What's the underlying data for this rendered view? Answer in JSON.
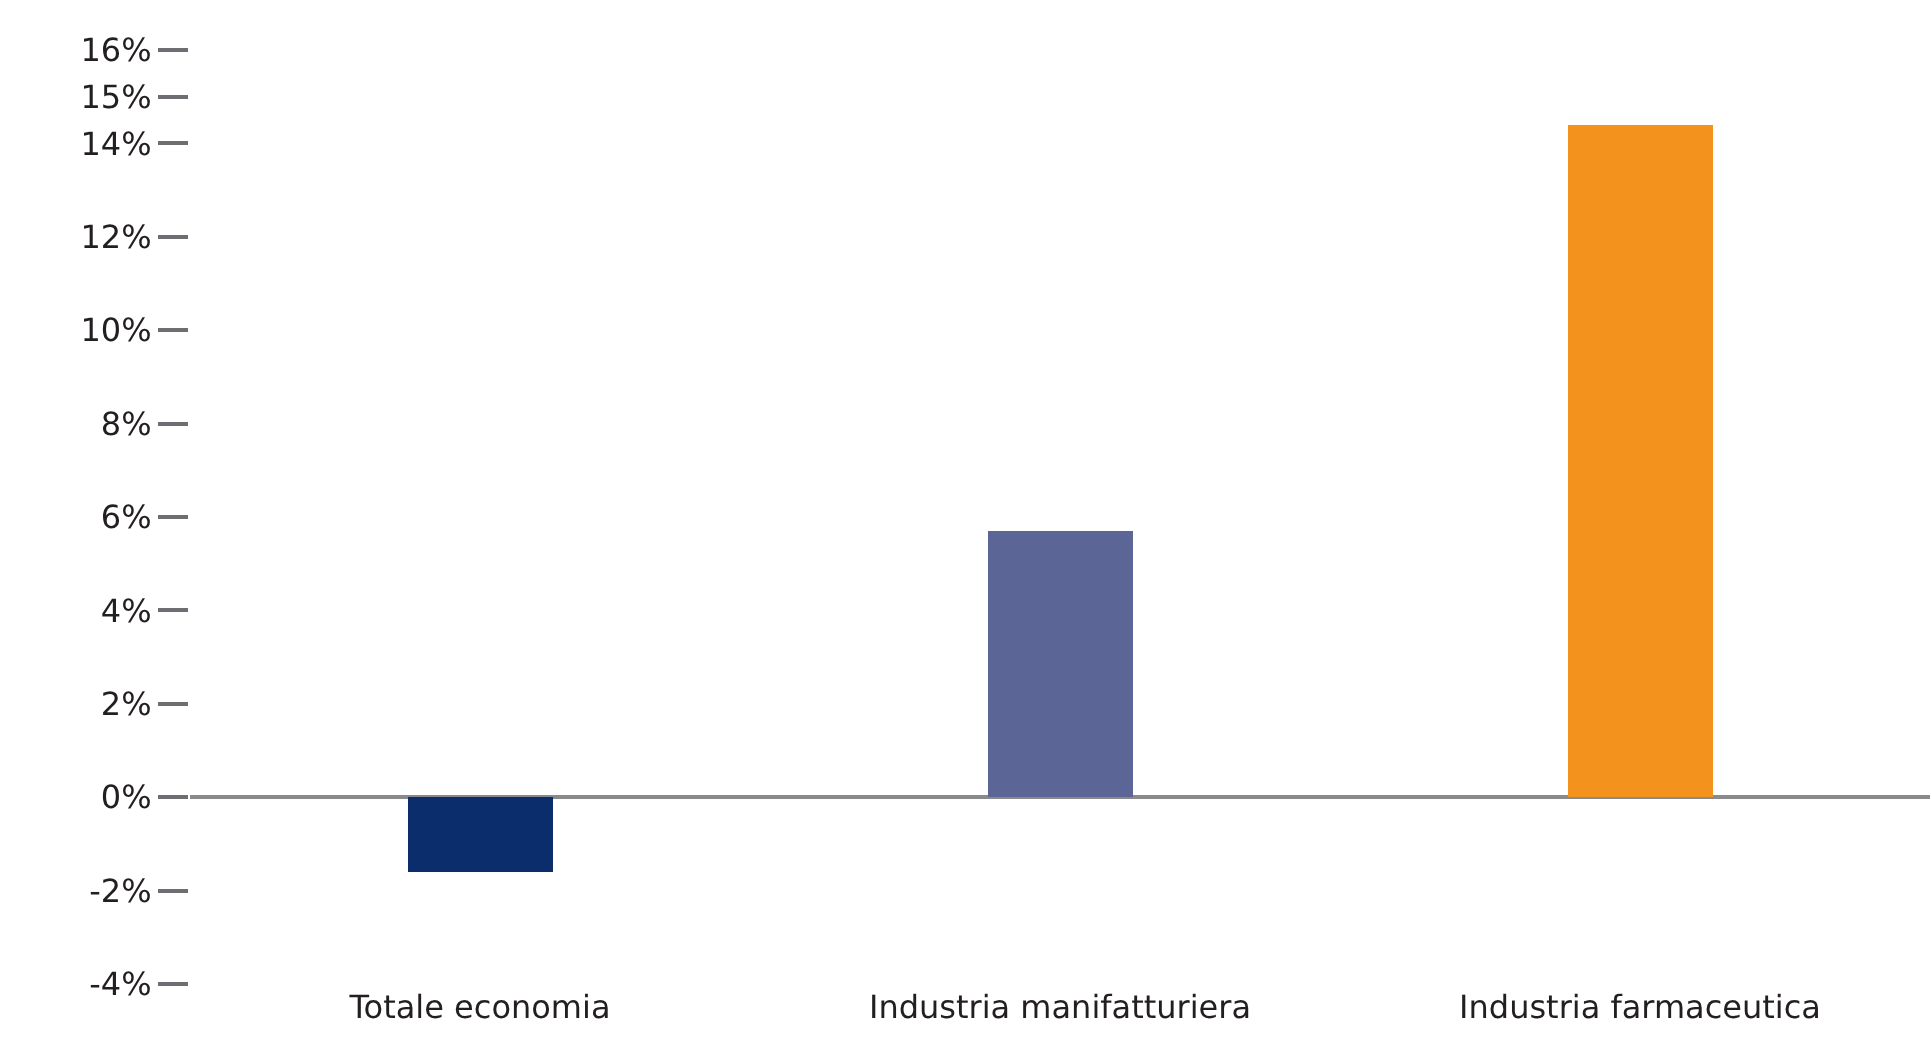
{
  "chart_data": {
    "type": "bar",
    "categories": [
      "Totale economia",
      "Industria manifatturiera",
      "Industria farmaceutica"
    ],
    "values": [
      -1.6,
      5.7,
      14.4
    ],
    "colors": [
      "#0b2d6b",
      "#5c6696",
      "#f4921e"
    ],
    "ylim": [
      -4,
      16
    ],
    "yticks": [
      {
        "value": 16,
        "label": "16%"
      },
      {
        "value": 15,
        "label": "15%"
      },
      {
        "value": 14,
        "label": "14%"
      },
      {
        "value": 12,
        "label": "12%"
      },
      {
        "value": 10,
        "label": "10%"
      },
      {
        "value": 8,
        "label": "8%"
      },
      {
        "value": 6,
        "label": "6%"
      },
      {
        "value": 4,
        "label": "4%"
      },
      {
        "value": 2,
        "label": "2%"
      },
      {
        "value": 0,
        "label": "0%"
      },
      {
        "value": -2,
        "label": "-2%"
      },
      {
        "value": -4,
        "label": "-4%"
      }
    ],
    "tick_labels": "xy"
  }
}
